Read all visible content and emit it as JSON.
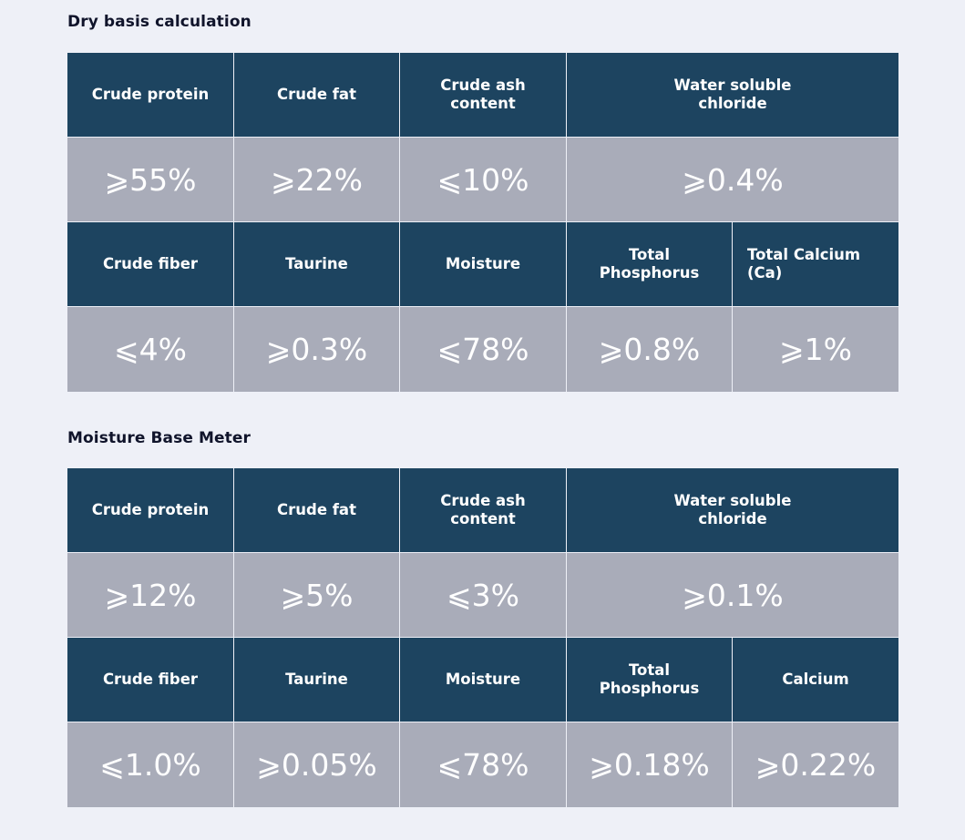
{
  "sections": [
    {
      "title": "Dry basis calculation",
      "row1_headers": [
        "Crude protein",
        "Crude fat",
        "Crude ash content",
        "Water soluble chloride"
      ],
      "row1_values": [
        "⩾55%",
        "⩾22%",
        "⩽10%",
        "⩾0.4%"
      ],
      "row2_headers": [
        "Crude fiber",
        "Taurine",
        "Moisture",
        "Total Phosphorus",
        "Total Calcium (Ca)"
      ],
      "row2_values": [
        "⩽4%",
        "⩾0.3%",
        "⩽78%",
        "⩾0.8%",
        "⩾1%"
      ]
    },
    {
      "title": "Moisture Base Meter",
      "row1_headers": [
        "Crude protein",
        "Crude fat",
        "Crude ash content",
        "Water soluble chloride"
      ],
      "row1_values": [
        "⩾12%",
        "⩾5%",
        "⩽3%",
        "⩾0.1%"
      ],
      "row2_headers": [
        "Crude fiber",
        "Taurine",
        "Moisture",
        "Total Phosphorus",
        "Calcium"
      ],
      "row2_values": [
        "⩽1.0%",
        "⩾0.05%",
        "⩽78%",
        "⩾0.18%",
        "⩾0.22%"
      ]
    }
  ],
  "colors": {
    "header_bg": "#1d4460",
    "value_bg": "#a9acb9",
    "page_bg": "#eef0f7",
    "title_text": "#10142b"
  }
}
